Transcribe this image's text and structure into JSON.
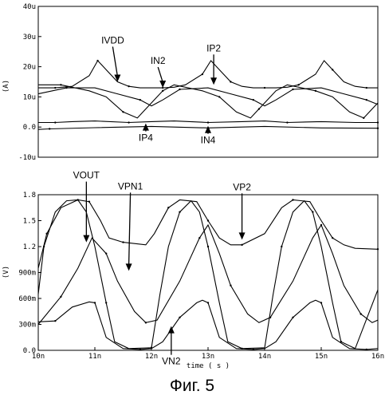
{
  "caption": "Фиг. 5",
  "chart_data": [
    {
      "type": "line",
      "ylabel": "(A)",
      "ylim": [
        -10,
        40
      ],
      "xlim": [
        10,
        16
      ],
      "yticks": [
        {
          "v": 40,
          "label": "40u"
        },
        {
          "v": 30,
          "label": "30u"
        },
        {
          "v": 20,
          "label": "20u"
        },
        {
          "v": 10,
          "label": "10u"
        },
        {
          "v": 0,
          "label": "0.0"
        },
        {
          "v": -10,
          "label": "-10u"
        }
      ],
      "series": [
        {
          "name": "IVDD",
          "x": [
            10,
            10.3,
            10.6,
            10.9,
            11.05,
            11.2,
            11.4,
            11.6,
            11.8,
            12.0,
            12.2,
            12.4,
            12.6,
            12.9,
            13.05,
            13.2,
            13.4,
            13.6,
            13.8,
            14.0,
            14.2,
            14.4,
            14.6,
            14.9,
            15.05,
            15.2,
            15.4,
            15.6,
            15.8,
            16.0
          ],
          "y": [
            13,
            13,
            13.5,
            17,
            22,
            19,
            15,
            13.5,
            13,
            13,
            13,
            13.2,
            14,
            17.5,
            22,
            19,
            15,
            13.5,
            13,
            13,
            13,
            13.2,
            14,
            17.5,
            22,
            19,
            15,
            13.5,
            13,
            13
          ]
        },
        {
          "name": "IN2",
          "x": [
            10,
            10.5,
            11.0,
            11.4,
            11.8,
            12.0,
            12.2,
            12.5,
            13.0,
            13.4,
            13.8,
            14.0,
            14.2,
            14.5,
            15.0,
            15.4,
            15.8,
            16.0
          ],
          "y": [
            11,
            13,
            13,
            11,
            9,
            7,
            9,
            12.5,
            13,
            11,
            9,
            7,
            9,
            12.5,
            13,
            11,
            9,
            7.5
          ]
        },
        {
          "name": "IP2",
          "x": [
            10,
            10.4,
            10.9,
            11.2,
            11.5,
            11.75,
            11.9,
            12.2,
            12.4,
            12.9,
            13.2,
            13.5,
            13.75,
            13.9,
            14.2,
            14.4,
            14.9,
            15.2,
            15.5,
            15.75,
            15.9,
            16.0
          ],
          "y": [
            14,
            14,
            12,
            10,
            5,
            3,
            6,
            12,
            14,
            12,
            10,
            5,
            3,
            6,
            12,
            14,
            12,
            10,
            5,
            3,
            6,
            8
          ]
        },
        {
          "name": "IP4",
          "x": [
            10,
            10.3,
            10.6,
            11.0,
            11.6,
            12.0,
            12.4,
            13.0,
            13.6,
            14.0,
            14.4,
            15.0,
            15.6,
            16.0
          ],
          "y": [
            1.5,
            1.5,
            1.8,
            2,
            1.5,
            1.8,
            2,
            1.5,
            1.8,
            2,
            1.5,
            1.8,
            1.5,
            1.5
          ]
        },
        {
          "name": "IN4",
          "x": [
            10,
            10.2,
            11.0,
            12.0,
            13.0,
            14.0,
            15.0,
            16.0
          ],
          "y": [
            -0.8,
            -0.6,
            -0.2,
            0.2,
            -0.3,
            0.2,
            -0.3,
            -0.4
          ]
        }
      ],
      "annotations": [
        {
          "text": "IVDD",
          "x": 11.4,
          "y": 15
        },
        {
          "text": "IN2",
          "x": 12.2,
          "y": 13
        },
        {
          "text": "IP2",
          "x": 13.1,
          "y": 14
        },
        {
          "text": "IP4",
          "x": 11.9,
          "y": 1.2
        },
        {
          "text": "IN4",
          "x": 13.0,
          "y": 0.4
        }
      ]
    },
    {
      "type": "line",
      "ylabel": "(V)",
      "xlabel": "time ( s )",
      "ylim": [
        0,
        1.8
      ],
      "xlim": [
        10,
        16
      ],
      "yticks": [
        {
          "v": 1.8,
          "label": "1.8"
        },
        {
          "v": 1.5,
          "label": "1.5"
        },
        {
          "v": 1.2,
          "label": "1.2"
        },
        {
          "v": 0.9,
          "label": "900m"
        },
        {
          "v": 0.6,
          "label": "600m"
        },
        {
          "v": 0.3,
          "label": "300m"
        },
        {
          "v": 0.0,
          "label": "0.0"
        }
      ],
      "xticks": [
        {
          "v": 10,
          "label": "10n"
        },
        {
          "v": 11,
          "label": "11n"
        },
        {
          "v": 12,
          "label": "12n"
        },
        {
          "v": 13,
          "label": "13n"
        },
        {
          "v": 14,
          "label": "14n"
        },
        {
          "v": 15,
          "label": "15n"
        },
        {
          "v": 16,
          "label": "16n"
        }
      ],
      "series": [
        {
          "name": "VOUT",
          "x": [
            10,
            10.1,
            10.3,
            10.5,
            10.7,
            10.85,
            11.0,
            11.2,
            11.35,
            11.6,
            12.0,
            12.15,
            12.3,
            12.5,
            12.7,
            12.85,
            13.0,
            13.2,
            13.35,
            13.6,
            14.0,
            14.15,
            14.3,
            14.5,
            14.7,
            14.85,
            15.0,
            15.2,
            15.35,
            15.6,
            16.0
          ],
          "y": [
            0.65,
            1.2,
            1.6,
            1.73,
            1.74,
            1.6,
            1.2,
            0.55,
            0.1,
            0.02,
            0.03,
            0.65,
            1.2,
            1.6,
            1.73,
            1.6,
            1.2,
            0.55,
            0.1,
            0.02,
            0.03,
            0.65,
            1.2,
            1.6,
            1.73,
            1.6,
            1.2,
            0.55,
            0.1,
            0.02,
            0.7
          ]
        },
        {
          "name": "VP2",
          "x": [
            10,
            10.15,
            10.4,
            10.7,
            10.9,
            11.1,
            11.25,
            11.5,
            11.9,
            12.05,
            12.3,
            12.5,
            12.8,
            13.0,
            13.2,
            13.4,
            13.6,
            14.0,
            14.3,
            14.5,
            14.8,
            15.0,
            15.2,
            15.4,
            15.6,
            16.0
          ],
          "y": [
            0.95,
            1.35,
            1.65,
            1.74,
            1.72,
            1.5,
            1.3,
            1.25,
            1.22,
            1.35,
            1.65,
            1.74,
            1.72,
            1.5,
            1.3,
            1.22,
            1.22,
            1.35,
            1.65,
            1.74,
            1.72,
            1.5,
            1.3,
            1.22,
            1.18,
            1.17
          ]
        },
        {
          "name": "VPN1",
          "x": [
            10,
            10.4,
            10.7,
            10.95,
            11.2,
            11.4,
            11.7,
            11.9,
            12.1,
            12.5,
            12.85,
            13.0,
            13.2,
            13.4,
            13.7,
            13.9,
            14.1,
            14.5,
            14.85,
            15.0,
            15.2,
            15.4,
            15.7,
            15.9,
            16.0
          ],
          "y": [
            0.3,
            0.62,
            0.95,
            1.3,
            1.12,
            0.8,
            0.45,
            0.32,
            0.35,
            0.8,
            1.3,
            1.45,
            1.12,
            0.75,
            0.42,
            0.32,
            0.38,
            0.8,
            1.3,
            1.45,
            1.12,
            0.75,
            0.42,
            0.32,
            0.35
          ]
        },
        {
          "name": "VN2",
          "x": [
            10,
            10.3,
            10.6,
            10.9,
            11.0,
            11.2,
            11.5,
            11.8,
            12.0,
            12.2,
            12.5,
            12.8,
            12.9,
            13.0,
            13.2,
            13.5,
            13.8,
            14.0,
            14.2,
            14.5,
            14.8,
            14.9,
            15.0,
            15.2,
            15.5,
            15.8,
            16.0
          ],
          "y": [
            0.33,
            0.34,
            0.5,
            0.56,
            0.55,
            0.15,
            0.02,
            0.01,
            0.02,
            0.1,
            0.38,
            0.55,
            0.58,
            0.55,
            0.15,
            0.02,
            0.01,
            0.02,
            0.1,
            0.38,
            0.55,
            0.58,
            0.55,
            0.15,
            0.02,
            0.01,
            0.02
          ]
        }
      ],
      "annotations": [
        {
          "text": "VOUT",
          "x": 10.85,
          "y": 1.25
        },
        {
          "text": "VPN1",
          "x": 11.6,
          "y": 0.92
        },
        {
          "text": "VP2",
          "x": 13.6,
          "y": 1.28
        },
        {
          "text": "VN2",
          "x": 12.35,
          "y": 0.28
        }
      ]
    }
  ]
}
